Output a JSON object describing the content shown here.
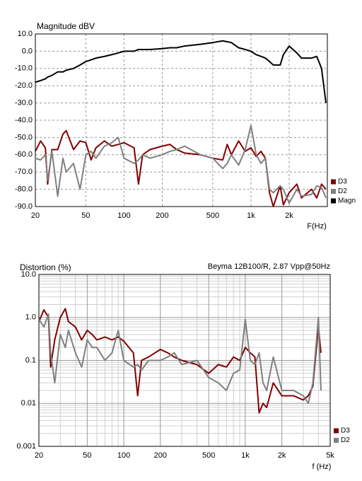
{
  "chart_data": [
    {
      "type": "line",
      "title": "Magnitude dBV",
      "x_label": "F(Hz)",
      "log_x": true,
      "log_y": false,
      "grid": true,
      "grid_style": "dashed",
      "legend": "lower right",
      "xlim": [
        20,
        4000
      ],
      "ylim": [
        -90,
        10
      ],
      "xticks": [
        20,
        50,
        100,
        200,
        500,
        {
          "value": 1000,
          "label": "1k"
        },
        {
          "value": 2000,
          "label": "2k"
        }
      ],
      "yticks": [
        {
          "value": 10,
          "label": "10.0"
        },
        {
          "value": 0,
          "label": "0.0"
        },
        {
          "value": -10,
          "label": "-10.0"
        },
        {
          "value": -20,
          "label": "-20.0"
        },
        {
          "value": -30,
          "label": "-30.0"
        },
        {
          "value": -40,
          "label": "-40.0"
        },
        {
          "value": -50,
          "label": "-50.0"
        },
        {
          "value": -60,
          "label": "-60.0"
        },
        {
          "value": -70,
          "label": "-70.0"
        },
        {
          "value": -80,
          "label": "-80.0"
        },
        {
          "value": -90,
          "label": "-90.0"
        }
      ],
      "x": [
        20,
        22,
        24,
        25,
        27,
        30,
        33,
        35,
        40,
        45,
        50,
        55,
        60,
        70,
        80,
        90,
        100,
        120,
        130,
        140,
        160,
        200,
        230,
        260,
        300,
        400,
        500,
        600,
        650,
        700,
        800,
        900,
        1000,
        1100,
        1200,
        1300,
        1400,
        1500,
        1700,
        1800,
        2000,
        2300,
        2500,
        3000,
        3300,
        3600,
        3900
      ],
      "series": [
        {
          "name": "D3",
          "color": "#800000",
          "values": [
            -58,
            -52,
            -56,
            -77,
            -57,
            -57,
            -48,
            -46,
            -57,
            -52,
            -53,
            -63,
            -56,
            -52,
            -55,
            -54,
            -53,
            -56,
            -77,
            -60,
            -57,
            -55,
            -54,
            -57,
            -59,
            -60,
            -62,
            -63,
            -54,
            -60,
            -52,
            -58,
            -56,
            -61,
            -58,
            -62,
            -82,
            -90,
            -78,
            -89,
            -82,
            -77,
            -85,
            -80,
            -85,
            -77,
            -80
          ]
        },
        {
          "name": "D2",
          "color": "#808080",
          "values": [
            -62,
            -63,
            -60,
            -75,
            -58,
            -84,
            -62,
            -70,
            -65,
            -80,
            -60,
            -58,
            -62,
            -55,
            -53,
            -50,
            -62,
            -65,
            -63,
            -60,
            -62,
            -60,
            -58,
            -57,
            -55,
            -60,
            -62,
            -68,
            -65,
            -60,
            -66,
            -57,
            -43,
            -60,
            -65,
            -62,
            -80,
            -82,
            -78,
            -80,
            -88,
            -80,
            -84,
            -83,
            -78,
            -79,
            -85
          ]
        },
        {
          "name": "Magn",
          "color": "#000000",
          "values": [
            -18,
            -17,
            -16,
            -15,
            -14,
            -12,
            -12,
            -11,
            -10,
            -8,
            -6,
            -5,
            -4,
            -3,
            -2,
            -1,
            0,
            0,
            1,
            1,
            1,
            1.5,
            2,
            2,
            3,
            4,
            5,
            6,
            5.5,
            5,
            2,
            1,
            0,
            -2,
            -3,
            -4,
            -6,
            -8,
            -8,
            -2,
            3,
            -1,
            -4,
            -4,
            -3,
            -10,
            -30
          ]
        }
      ]
    },
    {
      "type": "line",
      "title": "Distortion (%)",
      "subtitle": "Beyma 12B100/R, 2.87 Vpp@50Hz",
      "x_label": "f (Hz)",
      "log_x": true,
      "log_y": true,
      "grid": true,
      "grid_style": "solid",
      "legend": "lower right",
      "xlim": [
        20,
        5000
      ],
      "ylim": [
        0.001,
        10
      ],
      "xticks": [
        20,
        50,
        100,
        200,
        500,
        {
          "value": 1000,
          "label": "1k"
        },
        {
          "value": 2000,
          "label": "2k"
        },
        {
          "value": 5000,
          "label": "5k"
        }
      ],
      "yticks": [
        {
          "value": 10,
          "label": "10.0"
        },
        {
          "value": 1,
          "label": "1.0"
        },
        0.1,
        0.01,
        0.001
      ],
      "x_minor_ticks": [
        30,
        40,
        60,
        70,
        80,
        90,
        300,
        400,
        600,
        700,
        800,
        900,
        3000,
        4000
      ],
      "y_minor_ticks": [
        0.002,
        0.003,
        0.004,
        0.005,
        0.006,
        0.007,
        0.008,
        0.009,
        0.02,
        0.03,
        0.04,
        0.05,
        0.06,
        0.07,
        0.08,
        0.09,
        0.2,
        0.3,
        0.4,
        0.5,
        0.6,
        0.7,
        0.8,
        0.9,
        2,
        3,
        4,
        5,
        6,
        7,
        8,
        9
      ],
      "x": [
        20,
        22,
        24,
        25,
        27,
        30,
        33,
        35,
        40,
        45,
        50,
        55,
        60,
        70,
        80,
        90,
        100,
        120,
        130,
        140,
        160,
        200,
        230,
        260,
        300,
        400,
        500,
        600,
        700,
        800,
        900,
        1000,
        1100,
        1200,
        1300,
        1400,
        1500,
        1700,
        2000,
        2500,
        3000,
        3300,
        3600,
        4000,
        4200
      ],
      "series": [
        {
          "name": "D3",
          "color": "#800000",
          "values": [
            0.8,
            1.5,
            1.0,
            0.07,
            0.3,
            1.0,
            1.6,
            0.8,
            0.6,
            0.3,
            0.5,
            0.4,
            0.3,
            0.35,
            0.3,
            0.35,
            0.28,
            0.15,
            0.015,
            0.1,
            0.12,
            0.18,
            0.15,
            0.12,
            0.1,
            0.08,
            0.05,
            0.08,
            0.07,
            0.12,
            0.1,
            0.2,
            0.15,
            0.12,
            0.006,
            0.01,
            0.008,
            0.03,
            0.015,
            0.015,
            0.012,
            0.015,
            0.025,
            0.6,
            0.15
          ]
        },
        {
          "name": "D2",
          "color": "#808080",
          "values": [
            0.9,
            0.6,
            1.2,
            0.15,
            0.03,
            0.4,
            0.2,
            0.5,
            0.15,
            0.07,
            0.3,
            0.2,
            0.2,
            0.1,
            0.15,
            0.5,
            0.1,
            0.07,
            0.08,
            0.06,
            0.1,
            0.1,
            0.12,
            0.15,
            0.08,
            0.1,
            0.04,
            0.03,
            0.02,
            0.05,
            0.06,
            0.9,
            0.1,
            0.08,
            0.15,
            0.03,
            0.02,
            0.12,
            0.02,
            0.02,
            0.015,
            0.01,
            0.03,
            1.0,
            0.02
          ]
        }
      ]
    }
  ]
}
